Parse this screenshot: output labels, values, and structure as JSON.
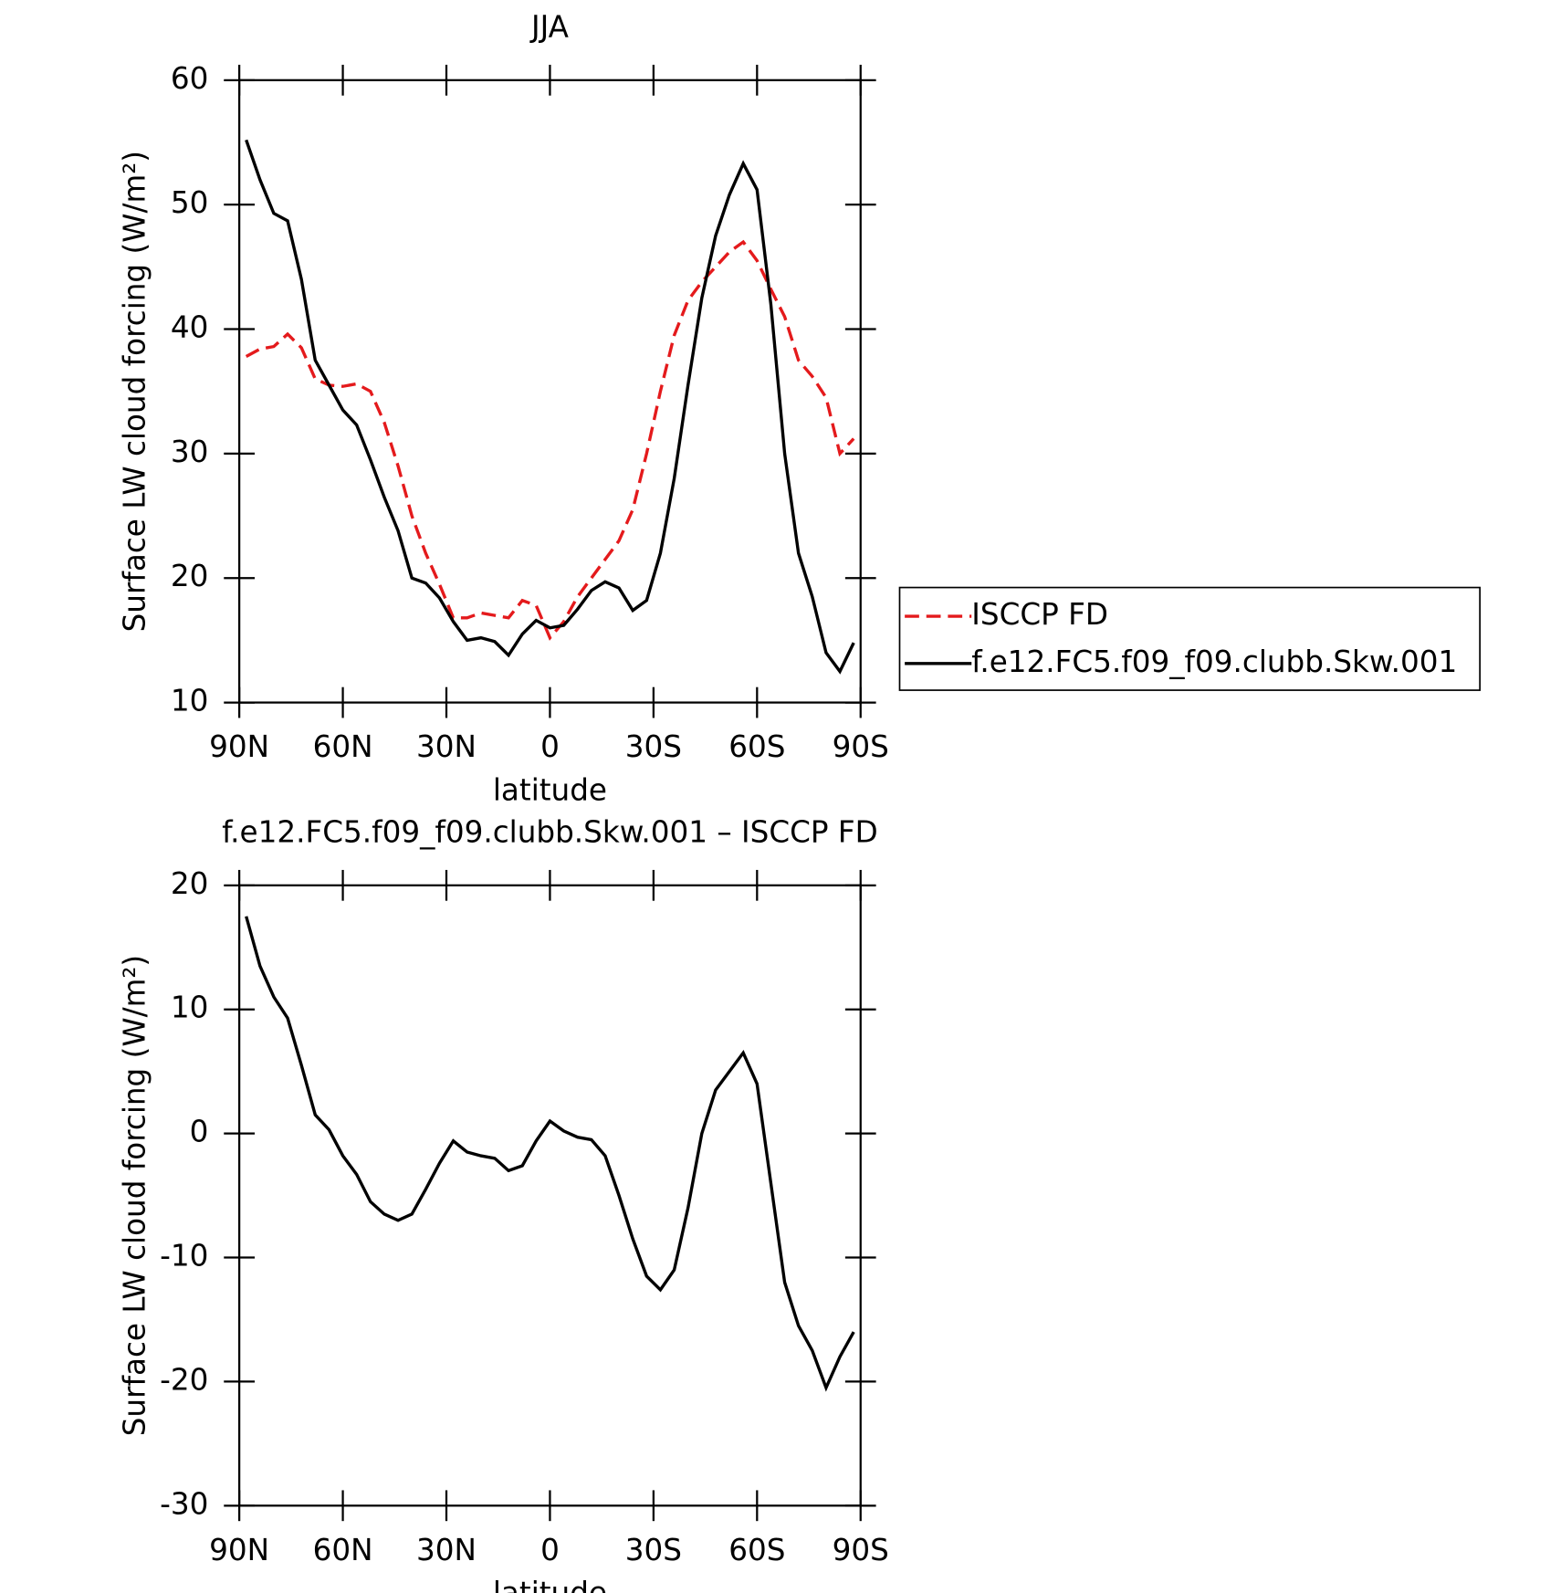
{
  "chart_data": [
    {
      "type": "line",
      "title": "JJA",
      "x_label": "latitude",
      "y_label": "Surface LW cloud forcing (W/m²)",
      "x": [
        88,
        84,
        80,
        76,
        72,
        68,
        64,
        60,
        56,
        52,
        48,
        44,
        40,
        36,
        32,
        28,
        24,
        20,
        16,
        12,
        8,
        4,
        0,
        -4,
        -8,
        -12,
        -16,
        -20,
        -24,
        -28,
        -32,
        -36,
        -40,
        -44,
        -48,
        -52,
        -56,
        -60,
        -64,
        -68,
        -72,
        -76,
        -80,
        -84,
        -88
      ],
      "xlim": [
        90,
        -90
      ],
      "xticks": [
        {
          "value": 90,
          "label": "90N"
        },
        {
          "value": 60,
          "label": "60N"
        },
        {
          "value": 30,
          "label": "30N"
        },
        0,
        {
          "value": -30,
          "label": "30S"
        },
        {
          "value": -60,
          "label": "60S"
        },
        {
          "value": -90,
          "label": "90S"
        }
      ],
      "ylim": [
        10,
        60
      ],
      "yticks": [
        10,
        20,
        30,
        40,
        50,
        60
      ],
      "legend": "right",
      "series": [
        {
          "name": "ISCCP FD",
          "color": "#e41a1c",
          "dashed": true,
          "values": [
            37.8,
            38.4,
            38.6,
            39.6,
            38.5,
            36,
            35.5,
            35.4,
            35.6,
            35,
            32.5,
            29,
            25,
            22,
            19.5,
            16.8,
            16.8,
            17.2,
            17,
            16.8,
            18.2,
            17.8,
            15.2,
            16.5,
            18.5,
            20,
            21.5,
            23,
            25.5,
            30,
            35,
            39.5,
            42.3,
            43.8,
            45,
            46.2,
            47,
            45.5,
            43.2,
            41,
            37.5,
            36.2,
            34.5,
            30,
            31.2
          ]
        },
        {
          "name": "f.e12.FC5.f09_f09.clubb.Skw.001",
          "color": "#000000",
          "dashed": false,
          "values": [
            55.2,
            52,
            49.3,
            48.7,
            44,
            37.5,
            35.5,
            33.5,
            32.3,
            29.5,
            26.5,
            23.8,
            20,
            19.6,
            18.4,
            16.5,
            15,
            15.2,
            14.9,
            13.8,
            15.5,
            16.6,
            16,
            16.2,
            17.5,
            19,
            19.7,
            19.2,
            17.4,
            18.2,
            22,
            28,
            35.5,
            42.5,
            47.5,
            50.8,
            53.3,
            51.2,
            42,
            30,
            22,
            18.5,
            14,
            12.5,
            14.8
          ]
        }
      ]
    },
    {
      "type": "line",
      "title": "f.e12.FC5.f09_f09.clubb.Skw.001 – ISCCP FD",
      "x_label": "latitude",
      "y_label": "Surface LW cloud forcing (W/m²)",
      "x": [
        88,
        84,
        80,
        76,
        72,
        68,
        64,
        60,
        56,
        52,
        48,
        44,
        40,
        36,
        32,
        28,
        24,
        20,
        16,
        12,
        8,
        4,
        0,
        -4,
        -8,
        -12,
        -16,
        -20,
        -24,
        -28,
        -32,
        -36,
        -40,
        -44,
        -48,
        -52,
        -56,
        -60,
        -64,
        -68,
        -72,
        -76,
        -80,
        -84,
        -88
      ],
      "xlim": [
        90,
        -90
      ],
      "xticks": [
        {
          "value": 90,
          "label": "90N"
        },
        {
          "value": 60,
          "label": "60N"
        },
        {
          "value": 30,
          "label": "30N"
        },
        0,
        {
          "value": -30,
          "label": "30S"
        },
        {
          "value": -60,
          "label": "60S"
        },
        {
          "value": -90,
          "label": "90S"
        }
      ],
      "ylim": [
        -30,
        20
      ],
      "yticks": [
        -30,
        -20,
        -10,
        0,
        10,
        20
      ],
      "series": [
        {
          "color": "#000000",
          "dashed": false,
          "values": [
            17.5,
            13.5,
            11,
            9.3,
            5.5,
            1.5,
            0.3,
            -1.8,
            -3.3,
            -5.5,
            -6.5,
            -7,
            -6.5,
            -4.5,
            -2.4,
            -0.6,
            -1.5,
            -1.8,
            -2,
            -3,
            -2.6,
            -0.6,
            1,
            0.2,
            -0.3,
            -0.5,
            -1.8,
            -5,
            -8.5,
            -11.5,
            -12.6,
            -11,
            -6,
            0,
            3.5,
            5,
            6.5,
            4,
            -4,
            -12,
            -15.5,
            -17.5,
            -20.5,
            -18,
            -16
          ]
        }
      ]
    }
  ]
}
